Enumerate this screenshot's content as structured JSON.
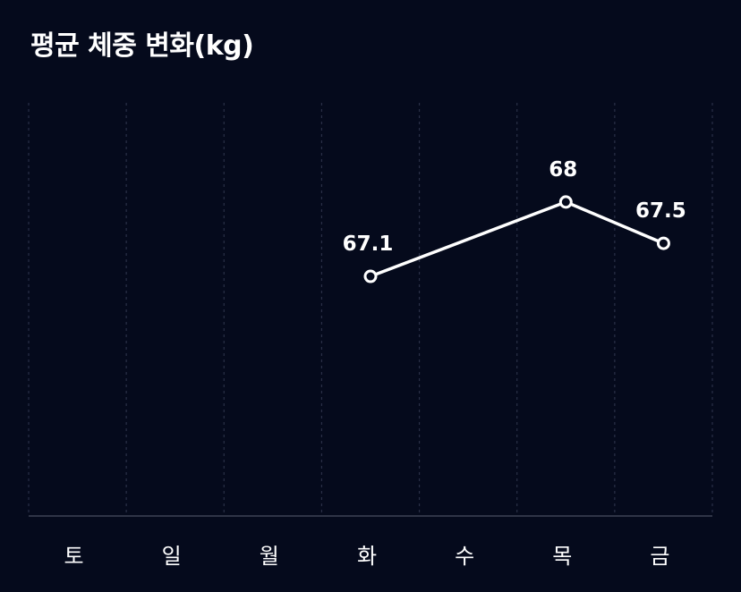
{
  "chart": {
    "title": "평균 체중 변화(kg)"
  },
  "colors": {
    "background": "#050a1c",
    "line": "#ffffff",
    "grid": "#2a3047",
    "baseline": "#2f3446",
    "sunday": "#e8504a",
    "text": "#ffffff"
  },
  "chart_data": {
    "type": "line",
    "title": "평균 체중 변화(kg)",
    "xlabel": "",
    "ylabel": "",
    "categories": [
      "토",
      "일",
      "월",
      "화",
      "수",
      "목",
      "금"
    ],
    "highlight_category": "일",
    "series": [
      {
        "values": [
          null,
          null,
          null,
          67.1,
          null,
          68,
          67.5
        ]
      }
    ],
    "data_labels": [
      "",
      "",
      "",
      "67.1",
      "",
      "68",
      "67.5"
    ],
    "ylim": [
      64.2,
      69.2
    ],
    "grid": "vertical-dashed",
    "legend": "none"
  }
}
